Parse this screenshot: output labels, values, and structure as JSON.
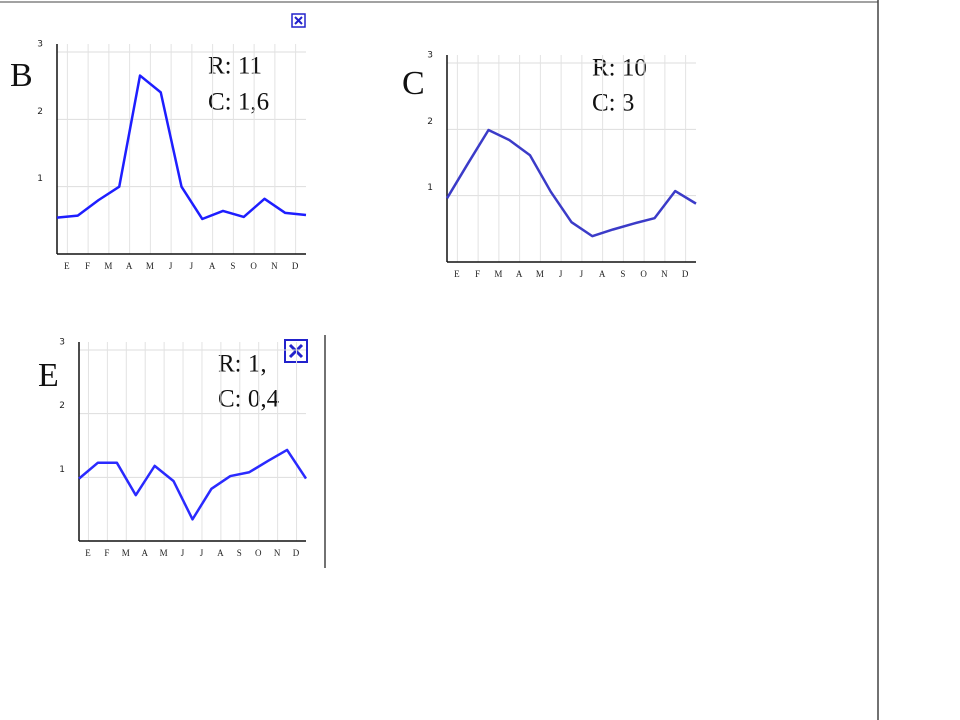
{
  "chart_data": [
    {
      "type": "line",
      "label": "B",
      "annotations": [
        "R: 11",
        "C: 1,6"
      ],
      "color": "#1e1eff",
      "x": [
        0,
        1,
        2,
        3,
        4,
        5,
        6,
        7,
        8,
        9,
        10,
        11,
        12
      ],
      "values": [
        0.54,
        0.57,
        0.8,
        1.0,
        2.65,
        2.4,
        1.0,
        0.52,
        0.64,
        0.55,
        0.82,
        0.61,
        0.58
      ],
      "xlim": [
        0,
        12
      ],
      "ylim": [
        0,
        3
      ],
      "yticks": [
        1,
        2,
        3
      ],
      "xticks": [
        {
          "value": 0.5,
          "label": "E"
        },
        {
          "value": 1.5,
          "label": "F"
        },
        {
          "value": 2.5,
          "label": "M"
        },
        {
          "value": 3.5,
          "label": "A"
        },
        {
          "value": 4.5,
          "label": "M"
        },
        {
          "value": 5.5,
          "label": "J"
        },
        {
          "value": 6.5,
          "label": "J"
        },
        {
          "value": 7.5,
          "label": "A"
        },
        {
          "value": 8.5,
          "label": "S"
        },
        {
          "value": 9.5,
          "label": "O"
        },
        {
          "value": 10.5,
          "label": "N"
        },
        {
          "value": 11.5,
          "label": "D"
        }
      ],
      "grid": true
    },
    {
      "type": "line",
      "label": "C",
      "annotations": [
        "R: 10",
        "C: 3"
      ],
      "color": "#3b3bc8",
      "x": [
        0,
        1,
        2,
        3,
        4,
        5,
        6,
        7,
        8,
        9,
        10,
        11,
        12
      ],
      "values": [
        0.96,
        1.48,
        1.99,
        1.84,
        1.61,
        1.06,
        0.6,
        0.39,
        0.49,
        0.58,
        0.66,
        1.07,
        0.88
      ],
      "xlim": [
        0,
        12
      ],
      "ylim": [
        0,
        3
      ],
      "yticks": [
        1,
        2,
        3
      ],
      "xticks": [
        {
          "value": 0.5,
          "label": "E"
        },
        {
          "value": 1.5,
          "label": "F"
        },
        {
          "value": 2.5,
          "label": "M"
        },
        {
          "value": 3.5,
          "label": "A"
        },
        {
          "value": 4.5,
          "label": "M"
        },
        {
          "value": 5.5,
          "label": "J"
        },
        {
          "value": 6.5,
          "label": "J"
        },
        {
          "value": 7.5,
          "label": "A"
        },
        {
          "value": 8.5,
          "label": "S"
        },
        {
          "value": 9.5,
          "label": "O"
        },
        {
          "value": 10.5,
          "label": "N"
        },
        {
          "value": 11.5,
          "label": "D"
        }
      ],
      "grid": true
    },
    {
      "type": "line",
      "label": "E",
      "annotations": [
        "R: 1,",
        "C: 0,4"
      ],
      "color": "#2a2aff",
      "x": [
        0,
        1,
        2,
        3,
        4,
        5,
        6,
        7,
        8,
        9,
        10,
        11,
        12
      ],
      "values": [
        0.98,
        1.23,
        1.23,
        0.72,
        1.18,
        0.94,
        0.34,
        0.82,
        1.02,
        1.08,
        1.26,
        1.43,
        0.98
      ],
      "xlim": [
        0,
        12
      ],
      "ylim": [
        0,
        3
      ],
      "yticks": [
        1,
        2,
        3
      ],
      "xticks": [
        {
          "value": 0.5,
          "label": "E"
        },
        {
          "value": 1.5,
          "label": "F"
        },
        {
          "value": 2.5,
          "label": "M"
        },
        {
          "value": 3.5,
          "label": "A"
        },
        {
          "value": 4.5,
          "label": "M"
        },
        {
          "value": 5.5,
          "label": "J"
        },
        {
          "value": 6.5,
          "label": "J"
        },
        {
          "value": 7.5,
          "label": "A"
        },
        {
          "value": 8.5,
          "label": "S"
        },
        {
          "value": 9.5,
          "label": "O"
        },
        {
          "value": 10.5,
          "label": "N"
        },
        {
          "value": 11.5,
          "label": "D"
        }
      ],
      "grid": true
    }
  ]
}
